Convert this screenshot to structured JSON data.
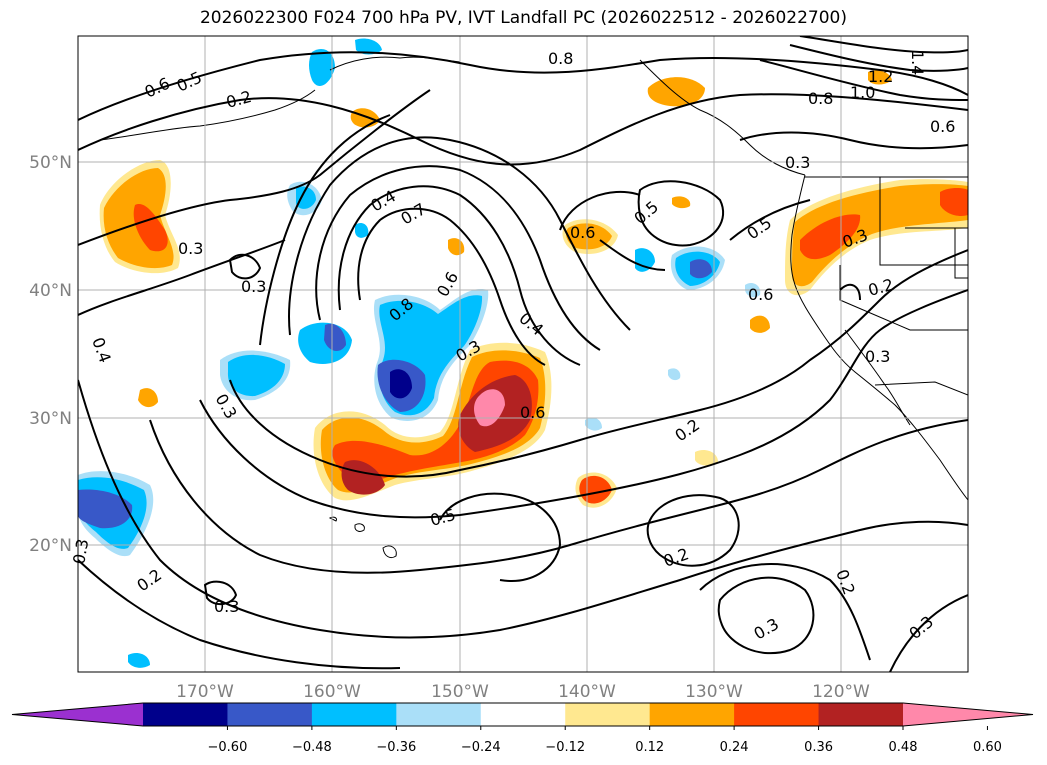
{
  "title": "2026022300 F024 700 hPa PV, IVT Landfall PC (2026022512 - 2026022700)",
  "lat_ticks": [
    "50°N",
    "40°N",
    "30°N",
    "20°N"
  ],
  "lon_ticks": [
    "170°W",
    "160°W",
    "150°W",
    "140°W",
    "130°W",
    "120°W"
  ],
  "colorbar": {
    "ticks": [
      "−0.60",
      "−0.48",
      "−0.36",
      "−0.24",
      "−0.12",
      "0.12",
      "0.24",
      "0.36",
      "0.48",
      "0.60"
    ],
    "colors": [
      "#9b30d0",
      "#00008b",
      "#3858c8",
      "#00bfff",
      "#aadff8",
      "#ffffff",
      "#ffe890",
      "#ffa500",
      "#ff4500",
      "#b22222",
      "#ff88aa"
    ],
    "extend": "both"
  },
  "contour_labels": [
    "0.6",
    "0.5",
    "0.2",
    "0.8",
    "0.8",
    "1.0",
    "1.2",
    "1.4",
    "0.6",
    "0.3",
    "0.4",
    "0.7",
    "0.6",
    "0.8",
    "0.6",
    "0.3",
    "0.5",
    "0.5",
    "0.6",
    "0.3",
    "0.2",
    "0.3",
    "0.3",
    "0.4",
    "0.3",
    "0.4",
    "0.3",
    "0.6",
    "0.2",
    "0.5",
    "0.2",
    "0.3",
    "0.2",
    "0.3",
    "0.2",
    "0.3",
    "0.3"
  ],
  "fill_colors": {
    "orange": "#ffa500",
    "red": "#ff4500",
    "darkred": "#b22222",
    "pink": "#ff88aa",
    "yellow": "#ffe890",
    "cyan": "#00bfff",
    "lightblue": "#aadff8",
    "blue": "#3858c8",
    "navy": "#00008b"
  }
}
